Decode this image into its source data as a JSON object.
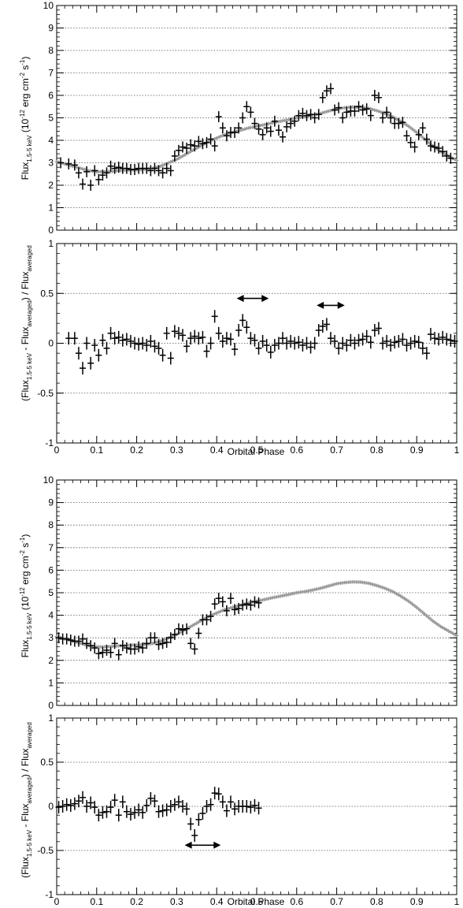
{
  "figure": {
    "panels": [
      {
        "id": "top"
      },
      {
        "id": "bottom"
      }
    ]
  },
  "labels": {
    "flux_ylabel": "Flux",
    "flux_ylabel_sub": "1.5-5 keV",
    "flux_ylabel_units_pre": " (10",
    "flux_ylabel_units_exp1": "-12",
    "flux_ylabel_units_mid": " erg cm",
    "flux_ylabel_units_exp2": "-2",
    "flux_ylabel_units_mid2": " s",
    "flux_ylabel_units_exp3": "-1",
    "flux_ylabel_units_post": ")",
    "resid_ylabel_a": "(Flux",
    "resid_ylabel_sub1": "1.5-5 keV",
    "resid_ylabel_b": " - Flux",
    "resid_ylabel_sub2": "averaged",
    "resid_ylabel_c": ") / Flux",
    "resid_ylabel_sub3": "averaged",
    "xlabel": "Orbital Phase"
  },
  "colors": {
    "data": "#000000",
    "model": "#9a9a9a",
    "grid": "#555555"
  },
  "chart_data": [
    {
      "type": "scatter",
      "panel": "top-flux",
      "xlabel": "Orbital Phase",
      "ylabel": "Flux 1.5-5 keV (10^-12 erg cm^-2 s^-1)",
      "xlim": [
        0,
        1
      ],
      "ylim": [
        0,
        10
      ],
      "yticks": [
        0,
        1,
        2,
        3,
        4,
        5,
        6,
        7,
        8,
        9,
        10
      ],
      "grid": "horizontal dotted",
      "series": [
        {
          "role": "averaged-model",
          "x": [
            0.0,
            0.02,
            0.04,
            0.06,
            0.08,
            0.1,
            0.12,
            0.14,
            0.16,
            0.18,
            0.2,
            0.22,
            0.24,
            0.26,
            0.28,
            0.3,
            0.32,
            0.34,
            0.36,
            0.38,
            0.4,
            0.42,
            0.44,
            0.46,
            0.48,
            0.5,
            0.52,
            0.54,
            0.56,
            0.58,
            0.6,
            0.62,
            0.64,
            0.66,
            0.68,
            0.7,
            0.72,
            0.74,
            0.76,
            0.78,
            0.8,
            0.82,
            0.84,
            0.86,
            0.88,
            0.9,
            0.92,
            0.94,
            0.96,
            0.98,
            1.0
          ],
          "y": [
            3.05,
            2.95,
            2.85,
            2.75,
            2.65,
            2.6,
            2.6,
            2.62,
            2.65,
            2.67,
            2.68,
            2.7,
            2.75,
            2.85,
            3.0,
            3.15,
            3.35,
            3.55,
            3.75,
            3.95,
            4.1,
            4.25,
            4.35,
            4.45,
            4.55,
            4.62,
            4.7,
            4.78,
            4.85,
            4.92,
            5.0,
            5.05,
            5.12,
            5.2,
            5.3,
            5.4,
            5.45,
            5.48,
            5.47,
            5.42,
            5.32,
            5.2,
            5.05,
            4.85,
            4.62,
            4.35,
            4.05,
            3.75,
            3.5,
            3.3,
            3.1
          ]
        },
        {
          "role": "observed",
          "x": [
            0.01,
            0.03,
            0.045,
            0.055,
            0.065,
            0.075,
            0.085,
            0.095,
            0.105,
            0.115,
            0.125,
            0.135,
            0.145,
            0.155,
            0.165,
            0.175,
            0.185,
            0.195,
            0.205,
            0.215,
            0.225,
            0.235,
            0.245,
            0.255,
            0.265,
            0.275,
            0.285,
            0.295,
            0.305,
            0.315,
            0.325,
            0.335,
            0.345,
            0.355,
            0.365,
            0.375,
            0.385,
            0.395,
            0.405,
            0.415,
            0.425,
            0.435,
            0.445,
            0.455,
            0.465,
            0.475,
            0.485,
            0.495,
            0.505,
            0.515,
            0.525,
            0.535,
            0.545,
            0.555,
            0.565,
            0.575,
            0.585,
            0.595,
            0.605,
            0.615,
            0.625,
            0.635,
            0.645,
            0.655,
            0.665,
            0.675,
            0.685,
            0.695,
            0.705,
            0.715,
            0.725,
            0.735,
            0.745,
            0.755,
            0.765,
            0.775,
            0.785,
            0.795,
            0.805,
            0.815,
            0.825,
            0.835,
            0.845,
            0.855,
            0.865,
            0.875,
            0.885,
            0.895,
            0.905,
            0.915,
            0.925,
            0.935,
            0.945,
            0.955,
            0.965,
            0.975,
            0.985
          ],
          "y": [
            3.0,
            2.95,
            2.9,
            2.55,
            2.05,
            2.6,
            2.0,
            2.65,
            2.25,
            2.45,
            2.55,
            2.85,
            2.75,
            2.8,
            2.75,
            2.75,
            2.7,
            2.7,
            2.75,
            2.75,
            2.75,
            2.65,
            2.75,
            2.65,
            2.55,
            2.75,
            2.65,
            3.3,
            3.55,
            3.7,
            3.65,
            3.8,
            3.75,
            3.95,
            3.85,
            3.9,
            4.05,
            3.75,
            5.05,
            4.55,
            4.2,
            4.35,
            4.35,
            4.55,
            5.0,
            5.5,
            5.25,
            4.75,
            4.5,
            4.25,
            4.55,
            4.4,
            4.85,
            4.45,
            4.15,
            4.6,
            4.75,
            4.85,
            5.1,
            5.2,
            5.1,
            5.15,
            5.0,
            5.15,
            5.9,
            6.2,
            6.3,
            5.35,
            5.45,
            5.0,
            5.25,
            5.3,
            5.3,
            5.5,
            5.35,
            5.4,
            5.1,
            6.0,
            5.9,
            5.0,
            5.25,
            5.0,
            4.75,
            4.75,
            4.8,
            4.2,
            3.9,
            3.7,
            4.25,
            4.55,
            4.05,
            3.75,
            3.7,
            3.65,
            3.5,
            3.3,
            3.2
          ]
        }
      ]
    },
    {
      "type": "scatter",
      "panel": "top-residual",
      "xlabel": "Orbital Phase",
      "ylabel": "(Flux 1.5-5 keV - Flux averaged) / Flux averaged",
      "xlim": [
        0,
        1
      ],
      "ylim": [
        -1,
        1
      ],
      "xticks": [
        "0",
        "0.1",
        "0.2",
        "0.3",
        "0.4",
        "0.5",
        "0.6",
        "0.7",
        "0.8",
        "0.9",
        "1"
      ],
      "yticks": [
        "-1",
        "-0.5",
        "0",
        "0.5",
        "1"
      ],
      "grid": "horizontal dotted",
      "annotations": [
        {
          "type": "double-arrow",
          "x": [
            0.45,
            0.53
          ],
          "y": 0.45
        },
        {
          "type": "double-arrow",
          "x": [
            0.65,
            0.72
          ],
          "y": 0.38
        }
      ],
      "series": [
        {
          "role": "residual",
          "x": [
            0.03,
            0.045,
            0.055,
            0.065,
            0.075,
            0.085,
            0.095,
            0.105,
            0.115,
            0.125,
            0.135,
            0.145,
            0.155,
            0.165,
            0.175,
            0.185,
            0.195,
            0.205,
            0.215,
            0.225,
            0.235,
            0.245,
            0.255,
            0.265,
            0.275,
            0.285,
            0.295,
            0.305,
            0.315,
            0.325,
            0.335,
            0.345,
            0.355,
            0.365,
            0.375,
            0.385,
            0.395,
            0.405,
            0.415,
            0.425,
            0.435,
            0.445,
            0.455,
            0.465,
            0.475,
            0.485,
            0.495,
            0.505,
            0.515,
            0.525,
            0.535,
            0.545,
            0.555,
            0.565,
            0.575,
            0.585,
            0.595,
            0.605,
            0.615,
            0.625,
            0.635,
            0.645,
            0.655,
            0.665,
            0.675,
            0.685,
            0.695,
            0.705,
            0.715,
            0.725,
            0.735,
            0.745,
            0.755,
            0.765,
            0.775,
            0.785,
            0.795,
            0.805,
            0.815,
            0.825,
            0.835,
            0.845,
            0.855,
            0.865,
            0.875,
            0.885,
            0.895,
            0.905,
            0.915,
            0.925,
            0.935,
            0.945,
            0.955,
            0.965,
            0.975,
            0.985,
            0.995
          ],
          "y": [
            0.05,
            0.05,
            -0.1,
            -0.25,
            0.0,
            -0.2,
            -0.02,
            -0.12,
            0.03,
            -0.05,
            0.1,
            0.05,
            0.06,
            0.03,
            0.04,
            0.02,
            0.0,
            -0.01,
            0.0,
            -0.02,
            0.02,
            -0.03,
            -0.05,
            -0.12,
            0.1,
            -0.15,
            0.12,
            0.1,
            0.08,
            -0.03,
            0.05,
            0.07,
            0.05,
            0.06,
            -0.08,
            0.0,
            0.27,
            0.1,
            0.02,
            0.05,
            0.04,
            -0.06,
            0.13,
            0.23,
            0.16,
            0.05,
            0.03,
            -0.05,
            0.02,
            -0.02,
            -0.09,
            -0.02,
            0.0,
            0.05,
            0.0,
            0.02,
            0.0,
            0.01,
            -0.02,
            0.0,
            -0.04,
            0.0,
            0.13,
            0.17,
            0.19,
            0.05,
            0.02,
            -0.05,
            0.0,
            -0.02,
            0.03,
            0.0,
            0.03,
            0.04,
            0.07,
            0.01,
            0.13,
            0.15,
            0.0,
            0.02,
            -0.02,
            0.01,
            0.02,
            0.04,
            -0.02,
            0.0,
            0.02,
            0.01,
            -0.05,
            -0.1,
            0.09,
            0.05,
            0.04,
            0.06,
            0.04,
            0.03,
            0.02
          ]
        }
      ]
    },
    {
      "type": "scatter",
      "panel": "bottom-flux",
      "xlabel": "Orbital Phase",
      "ylabel": "Flux 1.5-5 keV (10^-12 erg cm^-2 s^-1)",
      "xlim": [
        0,
        1
      ],
      "ylim": [
        0,
        10
      ],
      "yticks": [
        0,
        1,
        2,
        3,
        4,
        5,
        6,
        7,
        8,
        9,
        10
      ],
      "grid": "horizontal dotted",
      "series": [
        {
          "role": "averaged-model",
          "x": [
            0.0,
            0.02,
            0.04,
            0.06,
            0.08,
            0.1,
            0.12,
            0.14,
            0.16,
            0.18,
            0.2,
            0.22,
            0.24,
            0.26,
            0.28,
            0.3,
            0.32,
            0.34,
            0.36,
            0.38,
            0.4,
            0.42,
            0.44,
            0.46,
            0.48,
            0.5,
            0.52,
            0.54,
            0.56,
            0.58,
            0.6,
            0.62,
            0.64,
            0.66,
            0.68,
            0.7,
            0.72,
            0.74,
            0.76,
            0.78,
            0.8,
            0.82,
            0.84,
            0.86,
            0.88,
            0.9,
            0.92,
            0.94,
            0.96,
            0.98,
            1.0
          ],
          "y": [
            3.05,
            2.95,
            2.85,
            2.75,
            2.65,
            2.6,
            2.6,
            2.62,
            2.65,
            2.67,
            2.68,
            2.7,
            2.75,
            2.85,
            3.0,
            3.15,
            3.35,
            3.55,
            3.75,
            3.95,
            4.1,
            4.25,
            4.35,
            4.45,
            4.55,
            4.62,
            4.7,
            4.78,
            4.85,
            4.92,
            5.0,
            5.05,
            5.12,
            5.2,
            5.3,
            5.4,
            5.45,
            5.48,
            5.47,
            5.42,
            5.32,
            5.2,
            5.05,
            4.85,
            4.62,
            4.35,
            4.05,
            3.75,
            3.5,
            3.3,
            3.1
          ]
        },
        {
          "role": "observed",
          "x": [
            0.005,
            0.015,
            0.025,
            0.035,
            0.045,
            0.055,
            0.065,
            0.075,
            0.085,
            0.095,
            0.105,
            0.115,
            0.125,
            0.135,
            0.145,
            0.155,
            0.165,
            0.175,
            0.185,
            0.195,
            0.205,
            0.215,
            0.225,
            0.235,
            0.245,
            0.255,
            0.265,
            0.275,
            0.285,
            0.295,
            0.305,
            0.315,
            0.325,
            0.335,
            0.345,
            0.355,
            0.365,
            0.375,
            0.385,
            0.395,
            0.405,
            0.415,
            0.425,
            0.435,
            0.445,
            0.455,
            0.465,
            0.475,
            0.485,
            0.495,
            0.505
          ],
          "y": [
            3.0,
            2.95,
            2.95,
            2.9,
            2.85,
            2.85,
            2.95,
            2.75,
            2.65,
            2.55,
            2.3,
            2.35,
            2.45,
            2.35,
            2.75,
            2.25,
            2.65,
            2.55,
            2.5,
            2.5,
            2.6,
            2.55,
            2.75,
            3.0,
            3.0,
            2.7,
            2.75,
            2.8,
            3.0,
            3.15,
            3.4,
            3.35,
            3.4,
            2.75,
            2.5,
            3.2,
            3.8,
            3.8,
            3.95,
            4.5,
            4.75,
            4.6,
            4.2,
            4.75,
            4.25,
            4.3,
            4.45,
            4.5,
            4.45,
            4.6,
            4.55
          ]
        }
      ]
    },
    {
      "type": "scatter",
      "panel": "bottom-residual",
      "xlabel": "Orbital Phase",
      "ylabel": "(Flux 1.5-5 keV - Flux averaged) / Flux averaged",
      "xlim": [
        0,
        1
      ],
      "ylim": [
        -1,
        1
      ],
      "xticks": [
        "0",
        "0.1",
        "0.2",
        "0.3",
        "0.4",
        "0.5",
        "0.6",
        "0.7",
        "0.8",
        "0.9",
        "1"
      ],
      "yticks": [
        "-1",
        "-0.5",
        "0",
        "0.5",
        "1"
      ],
      "grid": "horizontal dotted",
      "annotations": [
        {
          "type": "double-arrow",
          "x": [
            0.32,
            0.41
          ],
          "y": -0.44
        }
      ],
      "series": [
        {
          "role": "residual",
          "x": [
            0.005,
            0.015,
            0.025,
            0.035,
            0.045,
            0.055,
            0.065,
            0.075,
            0.085,
            0.095,
            0.105,
            0.115,
            0.125,
            0.135,
            0.145,
            0.155,
            0.165,
            0.175,
            0.185,
            0.195,
            0.205,
            0.215,
            0.225,
            0.235,
            0.245,
            0.255,
            0.265,
            0.275,
            0.285,
            0.295,
            0.305,
            0.315,
            0.325,
            0.335,
            0.345,
            0.355,
            0.365,
            0.375,
            0.385,
            0.395,
            0.405,
            0.415,
            0.425,
            0.435,
            0.445,
            0.455,
            0.465,
            0.475,
            0.485,
            0.495,
            0.505
          ],
          "y": [
            -0.01,
            0.0,
            0.02,
            0.01,
            0.03,
            0.06,
            0.1,
            0.0,
            0.04,
            -0.01,
            -0.1,
            -0.07,
            -0.06,
            -0.01,
            0.07,
            -0.1,
            0.05,
            -0.06,
            -0.09,
            -0.07,
            -0.04,
            -0.07,
            0.01,
            0.09,
            0.06,
            -0.06,
            -0.05,
            -0.04,
            0.0,
            0.02,
            0.05,
            0.0,
            -0.03,
            -0.2,
            -0.33,
            -0.15,
            -0.08,
            0.0,
            0.02,
            0.15,
            0.14,
            0.05,
            -0.05,
            0.05,
            -0.03,
            0.0,
            0.0,
            0.0,
            -0.01,
            0.01,
            -0.02
          ]
        }
      ]
    }
  ]
}
